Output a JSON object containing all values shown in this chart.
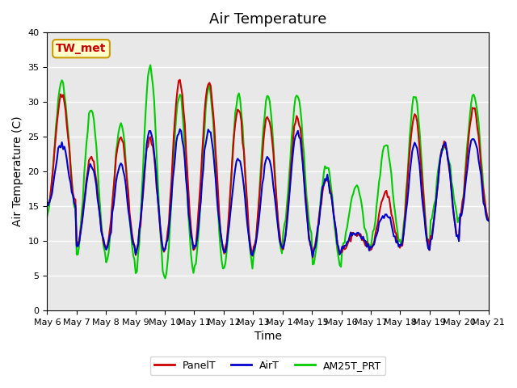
{
  "title": "Air Temperature",
  "xlabel": "Time",
  "ylabel": "Air Temperature (C)",
  "ylim": [
    0,
    40
  ],
  "background_color": "#e8e8e8",
  "grid_color": "#ffffff",
  "annotation_text": "TW_met",
  "annotation_color": "#cc0000",
  "annotation_bg": "#ffffcc",
  "annotation_border": "#cc9900",
  "legend_labels": [
    "PanelT",
    "AirT",
    "AM25T_PRT"
  ],
  "legend_colors": [
    "#cc0000",
    "#0000cc",
    "#00cc00"
  ],
  "line_width": 1.5,
  "title_fontsize": 13,
  "tick_fontsize": 8,
  "label_fontsize": 10,
  "xtick_labels": [
    "May 6",
    "May 7",
    "May 8",
    "May 9",
    "May 10",
    "May 11",
    "May 12",
    "May 13",
    "May 14",
    "May 15",
    "May 16",
    "May 17",
    "May 18",
    "May 19",
    "May 20",
    "May 21"
  ]
}
